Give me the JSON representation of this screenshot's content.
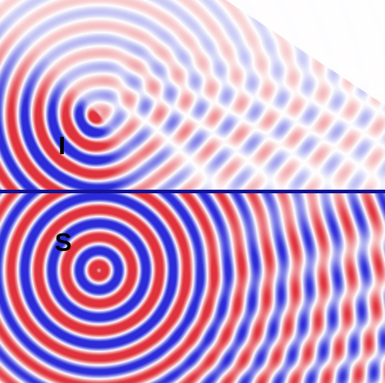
{
  "labels": {
    "incident": "I",
    "source": "S"
  },
  "colors": {
    "positive": "#e0323c",
    "negative": "#2b2bd9",
    "background": "#ffffff",
    "interface": "#141496"
  }
}
